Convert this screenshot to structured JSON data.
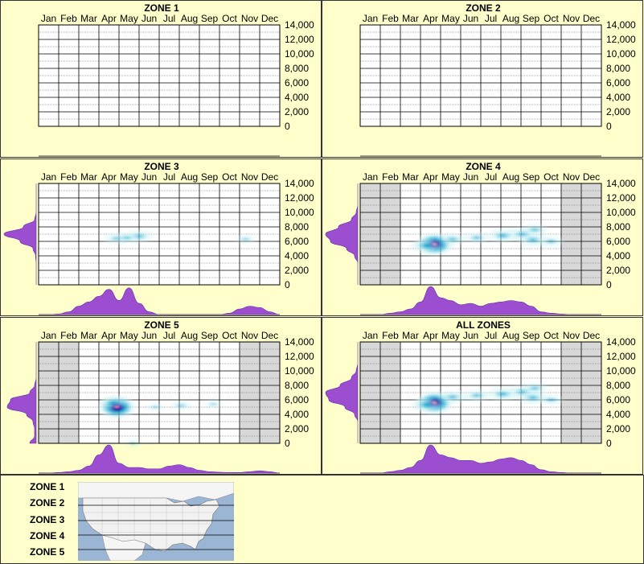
{
  "chart_data": {
    "type": "heatmap",
    "months": [
      "Jan",
      "Feb",
      "Mar",
      "Apr",
      "May",
      "Jun",
      "Jul",
      "Aug",
      "Sep",
      "Oct",
      "Nov",
      "Dec"
    ],
    "y_ticks": [
      "14,000",
      "12,000",
      "10,000",
      "8,000",
      "6,000",
      "4,000",
      "2,000",
      "0"
    ],
    "ylim": [
      0,
      14000
    ],
    "panels": [
      {
        "title": "ZONE 1",
        "has_data": false,
        "shaded_months": [],
        "hotspots": [],
        "x_density": [],
        "y_density": []
      },
      {
        "title": "ZONE 2",
        "has_data": false,
        "shaded_months": [],
        "hotspots": [],
        "x_density": [],
        "y_density": []
      },
      {
        "title": "ZONE 3",
        "has_data": true,
        "shaded_months": [],
        "hotspots": [
          {
            "month": 4.4,
            "elev": 6400,
            "intensity": 0.35
          },
          {
            "month": 5.5,
            "elev": 6700,
            "intensity": 0.45
          },
          {
            "month": 4.9,
            "elev": 6500,
            "intensity": 0.25
          },
          {
            "month": 10.8,
            "elev": 6300,
            "intensity": 0.15
          }
        ],
        "x_density": [
          0,
          0,
          0.02,
          0.1,
          0.3,
          0.45,
          0.65,
          0.9,
          0.5,
          0.95,
          0.4,
          0.1,
          0,
          0,
          0,
          0,
          0,
          0,
          0,
          0.05,
          0.2,
          0.3,
          0.25,
          0.1,
          0
        ],
        "y_density": [
          0,
          0,
          0,
          0,
          0.02,
          0.1,
          0.5,
          1.0,
          0.4,
          0.05,
          0,
          0,
          0,
          0,
          0
        ]
      },
      {
        "title": "ZONE 4",
        "has_data": true,
        "shaded_months": [
          1,
          2,
          11,
          12
        ],
        "hotspots": [
          {
            "month": 4.2,
            "elev": 5600,
            "intensity": 1.0
          },
          {
            "month": 3.8,
            "elev": 5400,
            "intensity": 0.55
          },
          {
            "month": 5.1,
            "elev": 6300,
            "intensity": 0.4
          },
          {
            "month": 6.3,
            "elev": 6500,
            "intensity": 0.35
          },
          {
            "month": 7.6,
            "elev": 6800,
            "intensity": 0.55
          },
          {
            "month": 8.6,
            "elev": 7000,
            "intensity": 0.55
          },
          {
            "month": 9.1,
            "elev": 6200,
            "intensity": 0.5
          },
          {
            "month": 10.0,
            "elev": 6000,
            "intensity": 0.3
          },
          {
            "month": 9.2,
            "elev": 7600,
            "intensity": 0.35
          }
        ],
        "x_density": [
          0,
          0,
          0,
          0.05,
          0.1,
          0.2,
          0.45,
          1.0,
          0.6,
          0.5,
          0.35,
          0.4,
          0.3,
          0.4,
          0.45,
          0.5,
          0.45,
          0.3,
          0.1,
          0.05,
          0.02,
          0,
          0,
          0,
          0
        ],
        "y_density": [
          0,
          0,
          0,
          0,
          0.1,
          0.35,
          0.85,
          1.0,
          0.6,
          0.2,
          0.05,
          0,
          0,
          0,
          0
        ]
      },
      {
        "title": "ZONE 5",
        "has_data": true,
        "shaded_months": [
          1,
          2,
          11,
          12
        ],
        "hotspots": [
          {
            "month": 4.4,
            "elev": 5000,
            "intensity": 1.0
          },
          {
            "month": 4.2,
            "elev": 5600,
            "intensity": 0.35
          },
          {
            "month": 7.6,
            "elev": 5200,
            "intensity": 0.2
          },
          {
            "month": 6.3,
            "elev": 5000,
            "intensity": 0.1
          },
          {
            "month": 9.2,
            "elev": 5400,
            "intensity": 0.08
          },
          {
            "month": 5.2,
            "elev": 0,
            "intensity": 0.05
          }
        ],
        "x_density": [
          0,
          0,
          0.02,
          0.05,
          0.1,
          0.25,
          0.65,
          1.0,
          0.35,
          0.2,
          0.2,
          0.15,
          0.15,
          0.25,
          0.3,
          0.2,
          0.1,
          0.05,
          0.03,
          0.02,
          0.02,
          0.05,
          0.08,
          0.05,
          0
        ],
        "y_density": [
          0.2,
          0.05,
          0.05,
          0.1,
          0.3,
          0.9,
          0.8,
          0.2,
          0.05,
          0,
          0,
          0,
          0,
          0,
          0
        ]
      },
      {
        "title": "ALL ZONES",
        "has_data": true,
        "shaded_months": [
          1,
          2,
          11,
          12
        ],
        "hotspots": [
          {
            "month": 4.2,
            "elev": 5600,
            "intensity": 1.0
          },
          {
            "month": 3.8,
            "elev": 5300,
            "intensity": 0.55
          },
          {
            "month": 5.1,
            "elev": 6400,
            "intensity": 0.45
          },
          {
            "month": 6.3,
            "elev": 6600,
            "intensity": 0.4
          },
          {
            "month": 7.6,
            "elev": 6800,
            "intensity": 0.55
          },
          {
            "month": 8.6,
            "elev": 7100,
            "intensity": 0.55
          },
          {
            "month": 9.1,
            "elev": 6300,
            "intensity": 0.5
          },
          {
            "month": 10.0,
            "elev": 6000,
            "intensity": 0.3
          },
          {
            "month": 9.2,
            "elev": 7600,
            "intensity": 0.35
          }
        ],
        "x_density": [
          0,
          0,
          0,
          0.05,
          0.1,
          0.2,
          0.45,
          1.0,
          0.65,
          0.55,
          0.45,
          0.45,
          0.35,
          0.4,
          0.5,
          0.55,
          0.45,
          0.3,
          0.12,
          0.05,
          0.02,
          0,
          0,
          0,
          0
        ],
        "y_density": [
          0,
          0,
          0,
          0,
          0.1,
          0.4,
          0.9,
          1.0,
          0.55,
          0.2,
          0.05,
          0,
          0,
          0,
          0
        ]
      }
    ]
  },
  "legend": {
    "zones": [
      "ZONE 1",
      "ZONE 2",
      "ZONE 3",
      "ZONE 4",
      "ZONE 5"
    ]
  },
  "colors": {
    "background": "#ffffcc",
    "density": "#9b4fd0",
    "shade": "#d8d8d8",
    "heat_low": "#c8f0f4",
    "heat_mid": "#1aa8d0",
    "heat_high": "#1a2aa0",
    "heat_peak": "#ff2a80",
    "map_water": "#9ab6d4",
    "map_land": "#f2f2f2"
  }
}
